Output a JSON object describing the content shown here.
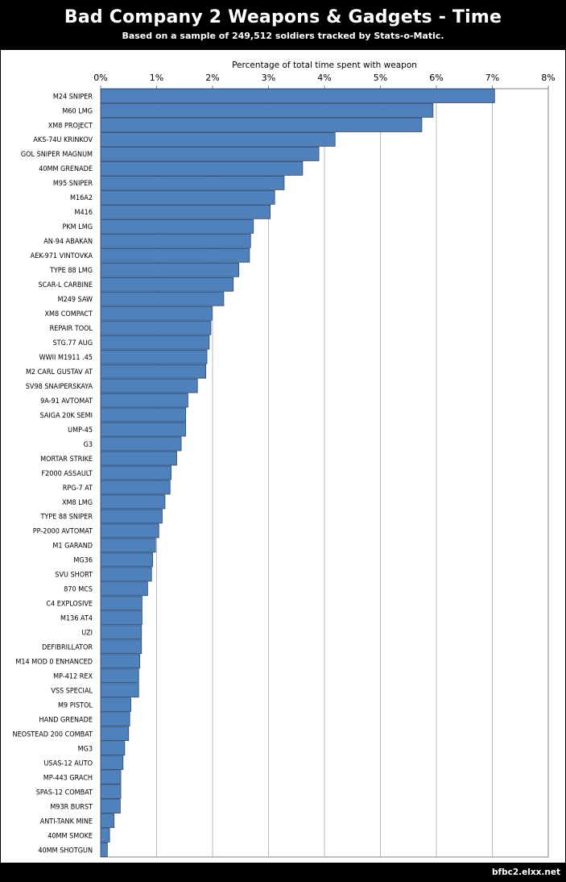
{
  "header": {
    "title": "Bad Company 2 Weapons & Gadgets - Time",
    "subtitle": "Based on a sample of 249,512 soldiers tracked by Stats-o-Matic."
  },
  "footer": {
    "site": "bfbc2.elxx.net"
  },
  "colors": {
    "bar_fill": "#4F81BD",
    "bar_stroke": "#2A4A75",
    "grid": "#B7B7B7",
    "background": "#FFFFFF",
    "frame": "#000000"
  },
  "chart_data": {
    "type": "bar",
    "orientation": "horizontal",
    "title": "Bad Company 2 Weapons & Gadgets - Time",
    "xlabel": "Percentage of total time spent with weapon",
    "ylabel": "",
    "xlim": [
      0,
      8
    ],
    "xticks": [
      0,
      1,
      2,
      3,
      4,
      5,
      6,
      7,
      8
    ],
    "xtick_labels": [
      "0%",
      "1%",
      "2%",
      "3%",
      "4%",
      "5%",
      "6%",
      "7%",
      "8%"
    ],
    "axis_position": "top",
    "grid": true,
    "categories": [
      "M24 SNIPER",
      "M60 LMG",
      "XM8 PROJECT",
      "AKS-74U KRINKOV",
      "GOL SNIPER MAGNUM",
      "40MM GRENADE",
      "M95 SNIPER",
      "M16A2",
      "M416",
      "PKM LMG",
      "AN-94 ABAKAN",
      "AEK-971 VINTOVKA",
      "TYPE 88 LMG",
      "SCAR-L CARBINE",
      "M249 SAW",
      "XM8 COMPACT",
      "REPAIR TOOL",
      "STG.77 AUG",
      "WWII M1911 .45",
      "M2 CARL GUSTAV AT",
      "SV98 SNAIPERSKAYA",
      "9A-91 AVTOMAT",
      "SAIGA 20K SEMI",
      "UMP-45",
      "G3",
      "MORTAR STRIKE",
      "F2000 ASSAULT",
      "RPG-7 AT",
      "XM8 LMG",
      "TYPE 88 SNIPER",
      "PP-2000 AVTOMAT",
      "M1 GARAND",
      "MG36",
      "SVU SHORT",
      "870 MCS",
      "C4 EXPLOSIVE",
      "M136 AT4",
      "UZI",
      "DEFIBRILLATOR",
      "M14 MOD 0 ENHANCED",
      "MP-412 REX",
      "VSS SPECIAL",
      "M9 PISTOL",
      "HAND GRENADE",
      "NEOSTEAD 200 COMBAT",
      "MG3",
      "USAS-12 AUTO",
      "MP-443 GRACH",
      "SPAS-12 COMBAT",
      "M93R BURST",
      "ANTI-TANK MINE",
      "40MM SMOKE",
      "40MM SHOTGUN"
    ],
    "values": [
      7.04,
      5.94,
      5.74,
      4.19,
      3.9,
      3.61,
      3.28,
      3.11,
      3.03,
      2.73,
      2.68,
      2.66,
      2.47,
      2.37,
      2.2,
      1.99,
      1.97,
      1.94,
      1.9,
      1.88,
      1.73,
      1.56,
      1.52,
      1.52,
      1.44,
      1.36,
      1.26,
      1.24,
      1.15,
      1.1,
      1.04,
      0.98,
      0.93,
      0.91,
      0.84,
      0.74,
      0.74,
      0.73,
      0.73,
      0.7,
      0.68,
      0.68,
      0.54,
      0.52,
      0.5,
      0.43,
      0.4,
      0.36,
      0.36,
      0.35,
      0.24,
      0.16,
      0.12
    ]
  }
}
